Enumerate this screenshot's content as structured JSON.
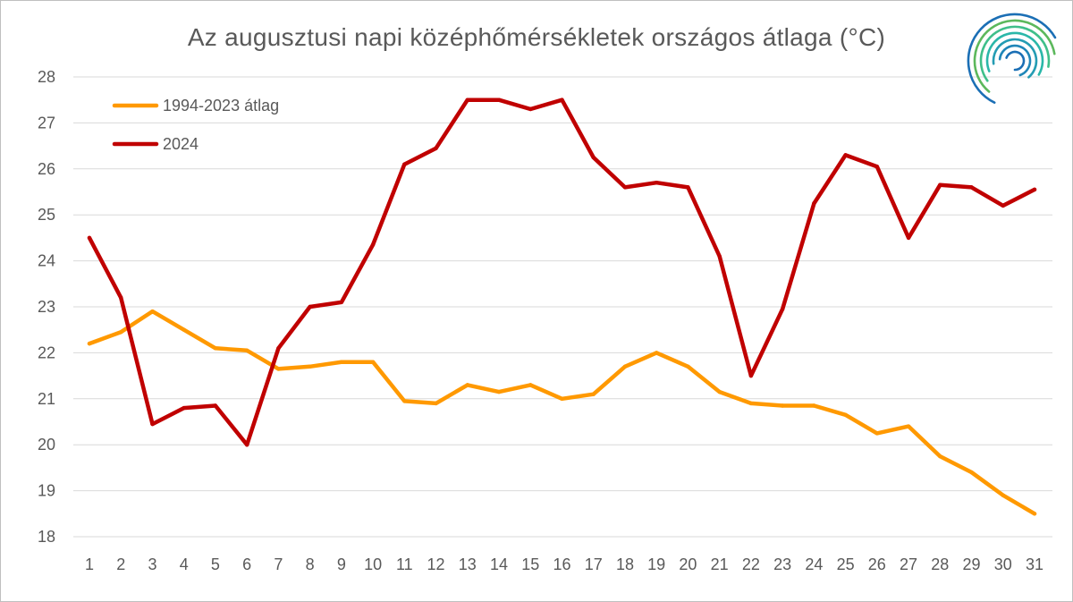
{
  "chart_data": {
    "type": "line",
    "title": "Az augusztusi napi középhőmérsékletek országos átlaga (°C)",
    "xlabel": "",
    "ylabel": "",
    "ylim": [
      18,
      28
    ],
    "yticks": [
      "18",
      "19",
      "20",
      "21",
      "22",
      "23",
      "24",
      "25",
      "26",
      "27",
      "28"
    ],
    "categories": [
      "1",
      "2",
      "3",
      "4",
      "5",
      "6",
      "7",
      "8",
      "9",
      "10",
      "11",
      "12",
      "13",
      "14",
      "15",
      "16",
      "17",
      "18",
      "19",
      "20",
      "21",
      "22",
      "23",
      "24",
      "25",
      "26",
      "27",
      "28",
      "29",
      "30",
      "31"
    ],
    "grid": true,
    "legend_position": "top-left",
    "series": [
      {
        "name": "1994-2023 átlag",
        "color": "#ff9900",
        "values": [
          22.2,
          22.45,
          22.9,
          22.5,
          22.1,
          22.05,
          21.65,
          21.7,
          21.8,
          21.8,
          20.95,
          20.9,
          21.3,
          21.15,
          21.3,
          21.0,
          21.1,
          21.7,
          22.0,
          21.7,
          21.15,
          20.9,
          20.85,
          20.85,
          20.65,
          20.25,
          20.4,
          19.75,
          19.4,
          18.9,
          18.5
        ]
      },
      {
        "name": "2024",
        "color": "#c00000",
        "values": [
          24.5,
          23.2,
          20.45,
          20.8,
          20.85,
          20.0,
          22.1,
          23.0,
          23.1,
          24.35,
          26.1,
          26.45,
          27.5,
          27.5,
          27.3,
          27.5,
          26.25,
          25.6,
          25.7,
          25.6,
          24.1,
          21.5,
          22.95,
          25.25,
          26.3,
          26.05,
          24.5,
          25.65,
          25.6,
          25.2,
          25.55
        ]
      }
    ]
  },
  "logo": {
    "name": "met-service-logo",
    "colors": [
      "#1b6fb5",
      "#2ab7a9",
      "#5cb85c"
    ]
  }
}
